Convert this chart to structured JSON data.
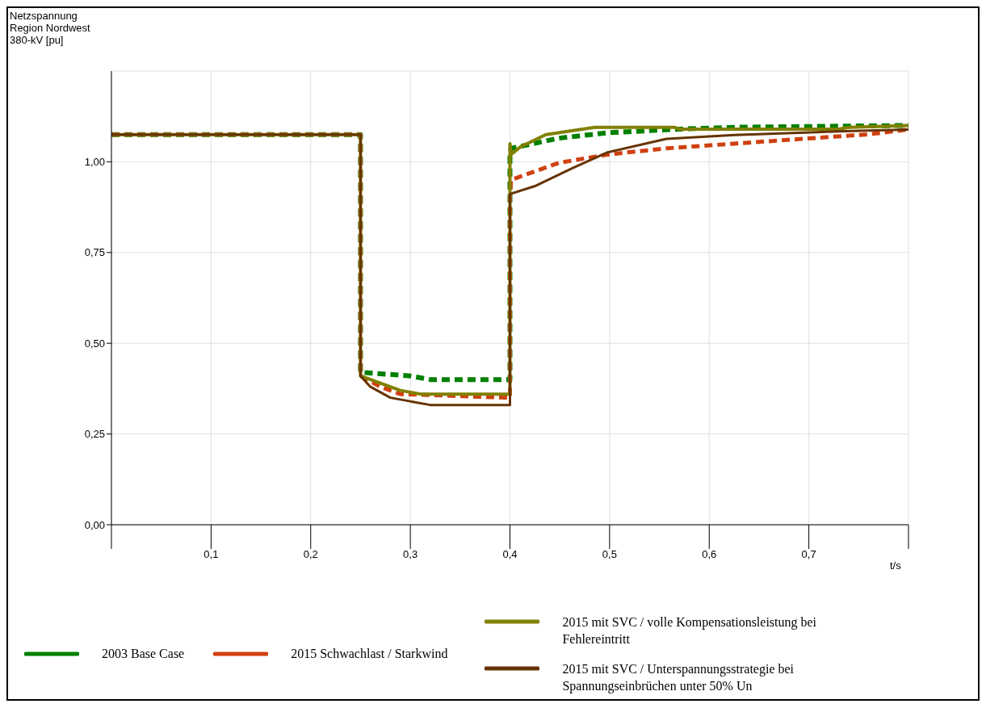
{
  "chart_data": {
    "type": "line",
    "ylabel": "Netzspannung\nRegion Nordwest\n380-kV [pu]",
    "xlabel": "t/s",
    "xlim": [
      0,
      0.8
    ],
    "xticks": [
      {
        "value": 0,
        "label": null
      },
      {
        "value": 0.1,
        "label": "0,1"
      },
      {
        "value": 0.2,
        "label": "0,2"
      },
      {
        "value": 0.3,
        "label": "0,3"
      },
      {
        "value": 0.4,
        "label": "0,4"
      },
      {
        "value": 0.5,
        "label": "0,5"
      },
      {
        "value": 0.6,
        "label": "0,6"
      },
      {
        "value": 0.7,
        "label": "0,7"
      },
      {
        "value": 0.8,
        "label": null
      }
    ],
    "ylim": [
      0,
      1.25
    ],
    "yticks": [
      {
        "value": 0,
        "label": "0,00"
      },
      {
        "value": 0.25,
        "label": "0,25"
      },
      {
        "value": 0.5,
        "label": "0,50"
      },
      {
        "value": 0.75,
        "label": "0,75"
      },
      {
        "value": 1,
        "label": "1,00"
      }
    ],
    "grid": true,
    "legend": "bottom",
    "marker": "none",
    "series": [
      {
        "name": "2003 Base Case",
        "color": "#008000",
        "line_style": "dashed",
        "x": [
          0,
          0.25,
          0.25,
          0.3,
          0.32,
          0.4,
          0.4,
          0.401,
          0.449,
          0.498,
          0.571,
          0.625,
          0.8
        ],
        "values": [
          1.075,
          1.075,
          0.42,
          0.41,
          0.4,
          0.4,
          1.02,
          1.037,
          1.065,
          1.08,
          1.09,
          1.095,
          1.1
        ]
      },
      {
        "name": "2015 Schwachlast / Starkwind",
        "color": "#d04010",
        "line_style": "dashed",
        "x": [
          0,
          0.25,
          0.25,
          0.27,
          0.29,
          0.4,
          0.4,
          0.401,
          0.449,
          0.498,
          0.557,
          0.625,
          0.693,
          0.761,
          0.8
        ],
        "values": [
          1.075,
          1.075,
          0.41,
          0.38,
          0.36,
          0.35,
          0.9,
          0.95,
          0.997,
          1.02,
          1.037,
          1.05,
          1.063,
          1.076,
          1.089
        ]
      },
      {
        "name": "2015 mit SVC / volle Kompensationsleistung bei Fehlereintritt",
        "color": "#808000",
        "line_style": "solid",
        "x": [
          0,
          0.25,
          0.25,
          0.27,
          0.29,
          0.31,
          0.4,
          0.4,
          0.401,
          0.41,
          0.436,
          0.485,
          0.565,
          0.57,
          0.73,
          0.74,
          0.8
        ],
        "values": [
          1.075,
          1.075,
          0.41,
          0.39,
          0.37,
          0.36,
          0.36,
          1.05,
          1.02,
          1.04,
          1.075,
          1.095,
          1.095,
          1.09,
          1.09,
          1.095,
          1.1
        ]
      },
      {
        "name": "2015 mit SVC / Unterspannungsstrategie bei Spannungseinbrüchen unter 50% Un",
        "color": "#663300",
        "line_style": "solid",
        "x": [
          0,
          0.25,
          0.25,
          0.26,
          0.28,
          0.3,
          0.32,
          0.4,
          0.4,
          0.425,
          0.463,
          0.498,
          0.557,
          0.625,
          0.69,
          0.743,
          0.8
        ],
        "values": [
          1.075,
          1.075,
          0.41,
          0.38,
          0.35,
          0.34,
          0.33,
          0.33,
          0.911,
          0.933,
          0.983,
          1.026,
          1.063,
          1.074,
          1.08,
          1.085,
          1.089
        ]
      }
    ]
  }
}
